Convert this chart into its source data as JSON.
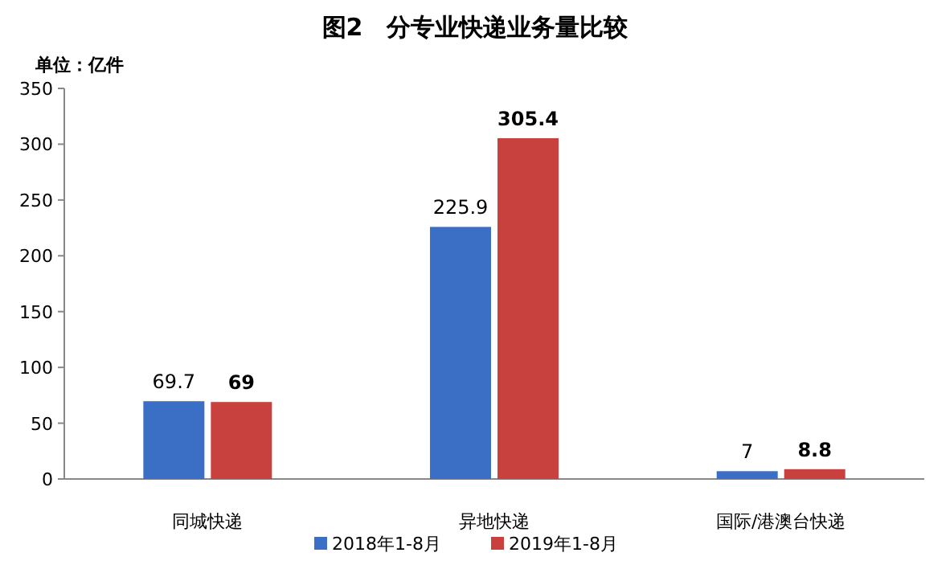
{
  "chart_data": {
    "type": "bar",
    "title": "图2　分专业快递业务量比较",
    "ylabel": "单位：亿件",
    "categories": [
      "同城快递",
      "异地快递",
      "国际/港澳台快递"
    ],
    "series": [
      {
        "name": "2018年1-8月",
        "color": "#3b6fc6",
        "values": [
          69.7,
          225.9,
          7
        ]
      },
      {
        "name": "2019年1-8月",
        "color": "#c8413e",
        "values": [
          69,
          305.4,
          8.8
        ]
      }
    ],
    "ylim": [
      0,
      350
    ],
    "yticks": [
      0,
      50,
      100,
      150,
      200,
      250,
      300,
      350
    ],
    "data_labels": true,
    "legend": "bottom"
  }
}
